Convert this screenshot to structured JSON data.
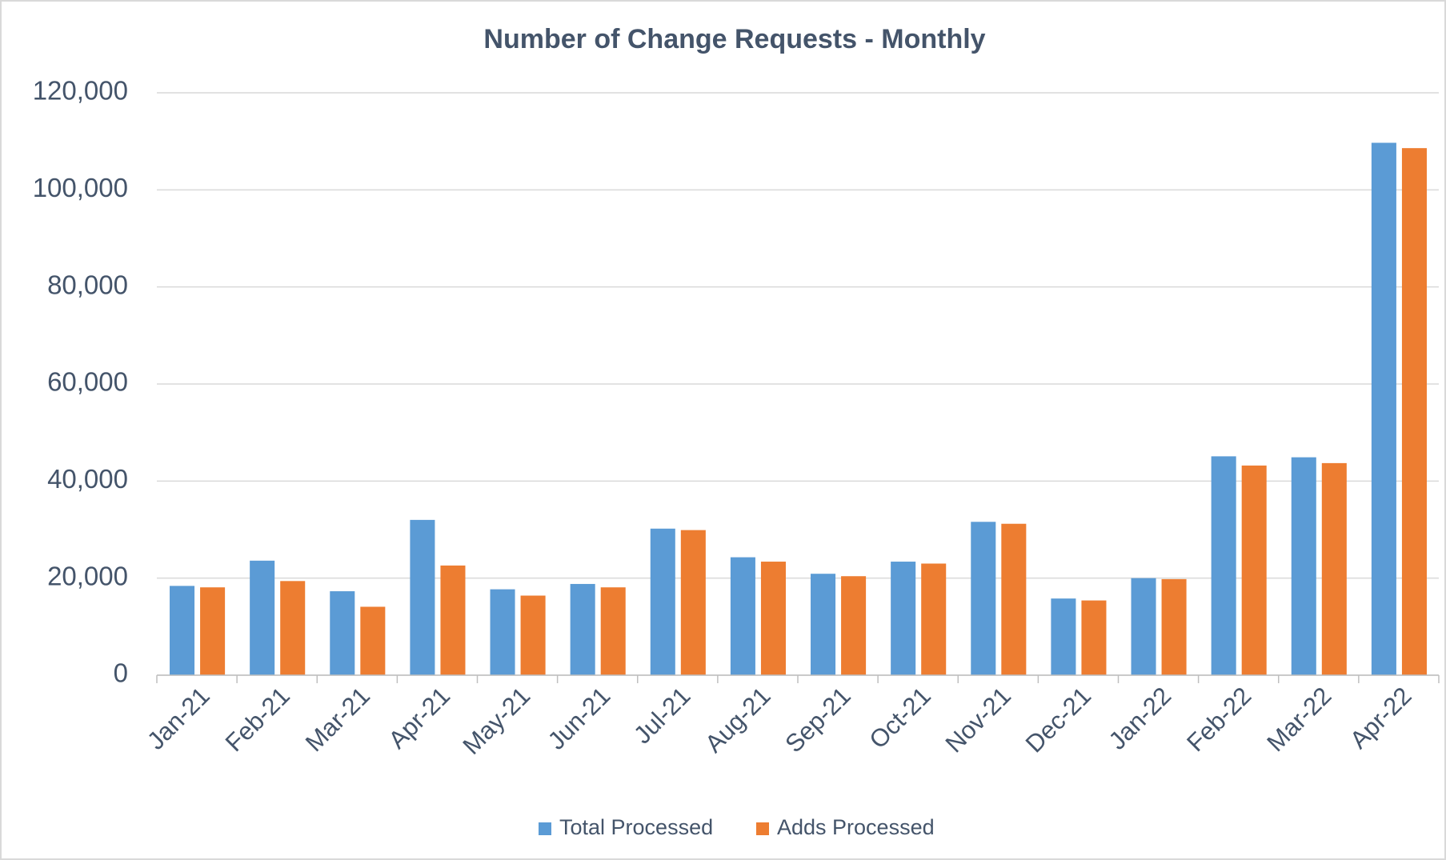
{
  "chart_data": {
    "type": "bar",
    "title": "Number of Change Requests - Monthly",
    "categories": [
      "Jan-21",
      "Feb-21",
      "Mar-21",
      "Apr-21",
      "May-21",
      "Jun-21",
      "Jul-21",
      "Aug-21",
      "Sep-21",
      "Oct-21",
      "Nov-21",
      "Dec-21",
      "Jan-22",
      "Feb-22",
      "Mar-22",
      "Apr-22"
    ],
    "series": [
      {
        "name": "Total Processed",
        "color": "#5b9bd5",
        "values": [
          18400,
          23600,
          17300,
          32000,
          17700,
          18800,
          30200,
          24300,
          20900,
          23400,
          31600,
          15800,
          20000,
          45100,
          44900,
          109700
        ]
      },
      {
        "name": "Adds Processed",
        "color": "#ed7d31",
        "values": [
          18100,
          19400,
          14100,
          22600,
          16400,
          18100,
          29900,
          23400,
          20400,
          23000,
          31200,
          15400,
          19800,
          43200,
          43700,
          108600
        ]
      }
    ],
    "ylim": [
      0,
      120000
    ],
    "yticks": [
      0,
      {
        "value": 20000,
        "label": "20,000"
      },
      {
        "value": 40000,
        "label": "40,000"
      },
      {
        "value": 60000,
        "label": "60,000"
      },
      {
        "value": 80000,
        "label": "80,000"
      },
      {
        "value": 100000,
        "label": "100,000"
      },
      {
        "value": 120000,
        "label": "120,000"
      }
    ],
    "grid": true,
    "legend": "bottom"
  }
}
